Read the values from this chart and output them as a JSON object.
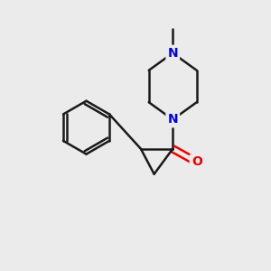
{
  "background_color": "#ebebeb",
  "bond_color": "#1a1a1a",
  "N_color": "#0000ee",
  "O_color": "#ee0000",
  "bond_width": 1.8,
  "font_size_atom": 10,
  "figsize": [
    3.0,
    3.0
  ],
  "dpi": 100,
  "xlim": [
    0,
    10
  ],
  "ylim": [
    0,
    10
  ]
}
